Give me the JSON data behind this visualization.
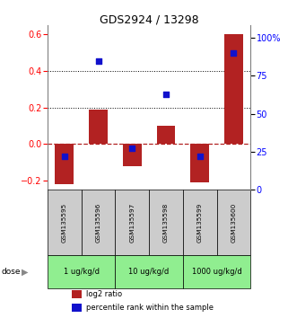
{
  "title": "GDS2924 / 13298",
  "samples": [
    "GSM135595",
    "GSM135596",
    "GSM135597",
    "GSM135598",
    "GSM135599",
    "GSM135600"
  ],
  "log2_ratio": [
    -0.22,
    0.19,
    -0.12,
    0.1,
    -0.21,
    0.6
  ],
  "percentile_rank": [
    22,
    85,
    27,
    63,
    22,
    90
  ],
  "dose_groups": [
    {
      "label": "1 ug/kg/d",
      "cols": [
        0,
        1
      ]
    },
    {
      "label": "10 ug/kg/d",
      "cols": [
        2,
        3
      ]
    },
    {
      "label": "1000 ug/kg/d",
      "cols": [
        4,
        5
      ]
    }
  ],
  "bar_color": "#b22222",
  "dot_color": "#1111cc",
  "ylim_left": [
    -0.25,
    0.65
  ],
  "ylim_right": [
    0,
    108.3
  ],
  "yticks_left": [
    -0.2,
    0.0,
    0.2,
    0.4,
    0.6
  ],
  "yticks_right": [
    0,
    25,
    50,
    75,
    100
  ],
  "ytick_labels_right": [
    "0",
    "25",
    "50",
    "75",
    "100%"
  ],
  "dotted_lines": [
    0.2,
    0.4
  ],
  "dose_bg_color": "#90ee90",
  "sample_bg_color": "#cccccc",
  "bar_width": 0.55,
  "dot_size": 18,
  "legend_labels": [
    "log2 ratio",
    "percentile rank within the sample"
  ]
}
